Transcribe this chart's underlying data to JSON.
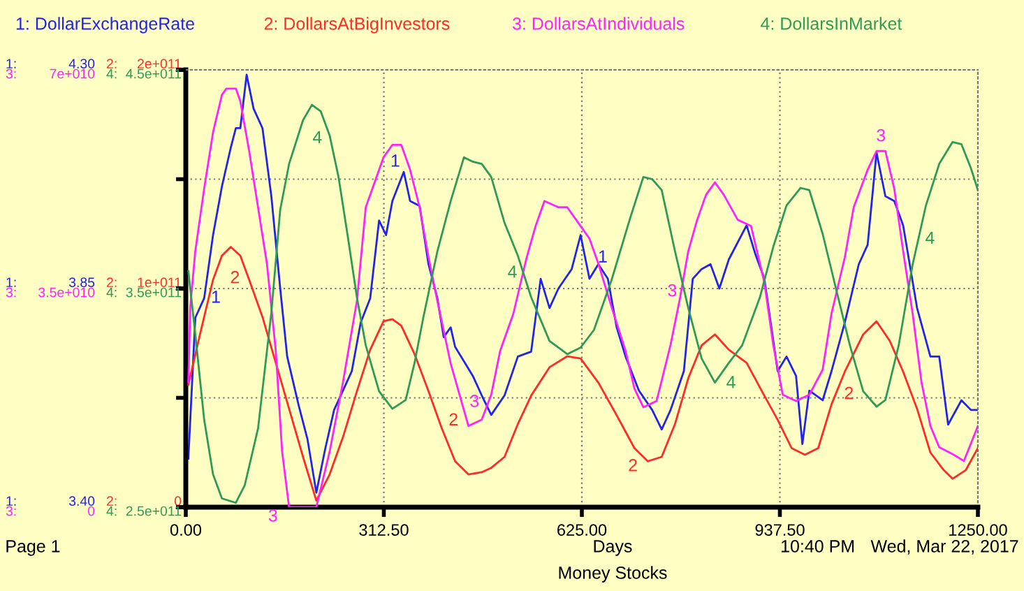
{
  "chart_data": [
    {
      "type": "line",
      "xlabel": "Days",
      "legend": "top",
      "grid": true,
      "xlim": [
        0,
        1250
      ],
      "xticks": [
        {
          "value": 0,
          "label": "0.00"
        },
        {
          "value": 312.5,
          "label": "312.50"
        },
        {
          "value": 625,
          "label": "625.00"
        },
        {
          "value": 937.5,
          "label": "937.50"
        },
        {
          "value": 1250,
          "label": "1250.00"
        }
      ],
      "ylim": [
        3.4,
        4.3
      ],
      "yticks": [
        {
          "value": 3.4,
          "label": "3.40"
        },
        {
          "value": 3.625,
          "label": null
        },
        {
          "value": 3.85,
          "label": "3.85"
        },
        {
          "value": 4.075,
          "label": null
        },
        {
          "value": 4.3,
          "label": "4.30"
        }
      ],
      "series": [
        {
          "name": "1: DollarExchangeRate",
          "color": "#2222ee",
          "x": [
            4,
            15,
            29,
            43,
            57,
            71,
            79,
            86,
            96,
            107,
            121,
            135,
            149,
            160,
            178,
            192,
            206,
            220,
            234,
            248,
            262,
            276,
            291,
            305,
            316,
            326,
            344,
            354,
            369,
            383,
            397,
            407,
            418,
            425,
            439,
            453,
            467,
            482,
            503,
            524,
            545,
            560,
            574,
            588,
            609,
            623,
            637,
            651,
            666,
            680,
            694,
            715,
            736,
            751,
            765,
            786,
            800,
            814,
            828,
            842,
            857,
            885,
            899,
            913,
            934,
            948,
            963,
            973,
            984,
            1005,
            1019,
            1040,
            1062,
            1076,
            1090,
            1104,
            1118,
            1132,
            1154,
            1175,
            1189,
            1203,
            1224,
            1239,
            1250
          ],
          "values": [
            3.5,
            3.79,
            3.83,
            3.96,
            4.06,
            4.14,
            4.18,
            4.18,
            4.29,
            4.22,
            4.18,
            4.04,
            3.85,
            3.71,
            3.61,
            3.54,
            3.43,
            3.52,
            3.6,
            3.64,
            3.68,
            3.78,
            3.83,
            3.99,
            3.96,
            4.03,
            4.09,
            4.03,
            4.02,
            3.9,
            3.83,
            3.75,
            3.77,
            3.73,
            3.7,
            3.67,
            3.63,
            3.59,
            3.63,
            3.71,
            3.72,
            3.87,
            3.81,
            3.85,
            3.89,
            3.96,
            3.87,
            3.9,
            3.87,
            3.77,
            3.71,
            3.64,
            3.6,
            3.56,
            3.6,
            3.68,
            3.87,
            3.89,
            3.9,
            3.85,
            3.91,
            3.98,
            3.92,
            3.87,
            3.68,
            3.71,
            3.67,
            3.53,
            3.64,
            3.62,
            3.68,
            3.78,
            3.9,
            3.94,
            4.13,
            4.04,
            4.03,
            3.98,
            3.81,
            3.71,
            3.71,
            3.57,
            3.62,
            3.6,
            3.6
          ]
        }
      ],
      "annotations": [
        "1:",
        "1:",
        "1:",
        {
          "text": "1",
          "x": 32,
          "y": 3.85
        },
        {
          "text": "1",
          "x": 346,
          "y": 4.09
        },
        {
          "text": "1",
          "x": 658,
          "y": 3.89
        },
        "Page 1",
        "10:40 PM",
        "Wed, Mar 22, 2017",
        "Money Stocks"
      ]
    },
    {
      "type": "line",
      "legend": "top",
      "tick_labels": "y",
      "xlim": [
        0,
        1250
      ],
      "ylim": [
        0,
        200000000000
      ],
      "yticks": [
        {
          "value": 0,
          "label": "0"
        },
        {
          "value": 100000000000,
          "label": "1e+011"
        },
        {
          "value": 200000000000,
          "label": "2e+011"
        }
      ],
      "series": [
        {
          "name": "2: DollarsAtBigInvestors",
          "color": "#ff2a2a",
          "x": [
            4,
            24,
            43,
            57,
            71,
            86,
            100,
            121,
            142,
            163,
            185,
            206,
            227,
            248,
            270,
            291,
            312,
            326,
            340,
            361,
            383,
            404,
            425,
            446,
            467,
            482,
            503,
            524,
            545,
            574,
            602,
            623,
            651,
            680,
            708,
            729,
            751,
            772,
            793,
            814,
            835,
            857,
            885,
            913,
            934,
            956,
            977,
            998,
            1019,
            1040,
            1069,
            1090,
            1111,
            1132,
            1154,
            1175,
            1196,
            1210,
            1231,
            1250
          ],
          "values": [
            56000000000,
            81000000000,
            104000000000,
            115000000000,
            119000000000,
            115000000000,
            104000000000,
            87000000000,
            66000000000,
            45000000000,
            23000000000,
            3000000000,
            15000000000,
            32000000000,
            53000000000,
            72000000000,
            85000000000,
            86000000000,
            83000000000,
            70000000000,
            53000000000,
            36000000000,
            21000000000,
            15000000000,
            16000000000,
            18000000000,
            23000000000,
            38000000000,
            51000000000,
            64000000000,
            69000000000,
            68000000000,
            57000000000,
            42000000000,
            27000000000,
            21000000000,
            23000000000,
            38000000000,
            59000000000,
            74000000000,
            79000000000,
            72000000000,
            66000000000,
            51000000000,
            40000000000,
            27000000000,
            24000000000,
            27000000000,
            47000000000,
            62000000000,
            79000000000,
            85000000000,
            76000000000,
            62000000000,
            45000000000,
            25000000000,
            17000000000,
            13000000000,
            17000000000,
            27000000000
          ]
        }
      ],
      "annotations": [
        "2:",
        "2:",
        "2:",
        {
          "text": "2",
          "x": 93,
          "y": 109000000000
        },
        {
          "text": "2",
          "x": 407,
          "y": 35000000000
        },
        {
          "text": "2",
          "x": 721,
          "y": 23000000000
        },
        {
          "text": "2",
          "x": 1031,
          "y": 56000000000
        }
      ]
    },
    {
      "type": "line",
      "legend": "top",
      "tick_labels": "y",
      "xlim": [
        0,
        1250
      ],
      "ylim": [
        0,
        70000000000
      ],
      "yticks": [
        {
          "value": 0,
          "label": "0"
        },
        {
          "value": 35000000000,
          "label": "3.5e+010"
        },
        {
          "value": 70000000000,
          "label": "7e+010"
        }
      ],
      "series": [
        {
          "name": "3: DollarsAtIndividuals",
          "color": "#ff22ff",
          "x": [
            4,
            7,
            15,
            29,
            43,
            57,
            64,
            79,
            86,
            100,
            114,
            128,
            142,
            152,
            163,
            185,
            206,
            227,
            248,
            270,
            284,
            298,
            312,
            326,
            340,
            354,
            369,
            383,
            397,
            418,
            432,
            446,
            467,
            482,
            496,
            517,
            538,
            552,
            566,
            588,
            602,
            623,
            637,
            651,
            672,
            694,
            708,
            722,
            743,
            765,
            779,
            793,
            807,
            821,
            835,
            849,
            871,
            892,
            913,
            927,
            942,
            963,
            984,
            1005,
            1019,
            1040,
            1054,
            1076,
            1090,
            1104,
            1118,
            1132,
            1147,
            1161,
            1175,
            1189,
            1210,
            1228,
            1250
          ],
          "values": [
            20000000000,
            32000000000,
            41000000000,
            51000000000,
            60000000000,
            66000000000,
            67000000000,
            67000000000,
            65000000000,
            57000000000,
            48000000000,
            39000000000,
            25000000000,
            8900000000,
            0,
            0,
            0,
            8900000000,
            20000000000,
            33000000000,
            48000000000,
            52000000000,
            56000000000,
            58000000000,
            58000000000,
            54000000000,
            48000000000,
            40000000000,
            33000000000,
            23000000000,
            18000000000,
            13000000000,
            14000000000,
            18000000000,
            25000000000,
            31000000000,
            40000000000,
            45000000000,
            49000000000,
            48000000000,
            48000000000,
            45000000000,
            43000000000,
            39000000000,
            32000000000,
            25000000000,
            19000000000,
            16000000000,
            17000000000,
            26000000000,
            33000000000,
            41000000000,
            46000000000,
            50000000000,
            52000000000,
            50000000000,
            46000000000,
            45000000000,
            36000000000,
            26000000000,
            18000000000,
            17000000000,
            18000000000,
            22000000000,
            31000000000,
            40000000000,
            48000000000,
            54000000000,
            57000000000,
            57000000000,
            51000000000,
            41000000000,
            31000000000,
            20000000000,
            13000000000,
            9600000000,
            8500000000,
            7400000000,
            13000000000
          ]
        }
      ],
      "annotations": [
        "3:",
        "3:",
        "3:",
        {
          "text": "3",
          "x": 153,
          "y": 0
        },
        {
          "text": "3",
          "x": 471,
          "y": 15200000000
        },
        {
          "text": "3",
          "x": 783,
          "y": 32900000000
        },
        {
          "text": "3",
          "x": 1097,
          "y": 57500000000
        }
      ]
    },
    {
      "type": "line",
      "legend": "top",
      "tick_labels": "y",
      "xlim": [
        0,
        1250
      ],
      "ylim": [
        250000000000,
        450000000000
      ],
      "yticks": [
        {
          "value": 250000000000,
          "label": "2.5e+011"
        },
        {
          "value": 350000000000,
          "label": "3.5e+011"
        },
        {
          "value": 450000000000,
          "label": "4.5e+011"
        }
      ],
      "series": [
        {
          "name": "4: DollarsInMarket",
          "color": "#2e9a55",
          "x": [
            4,
            15,
            29,
            43,
            57,
            79,
            93,
            114,
            135,
            149,
            163,
            185,
            199,
            213,
            227,
            241,
            255,
            270,
            284,
            305,
            326,
            347,
            361,
            375,
            397,
            418,
            439,
            453,
            467,
            482,
            503,
            524,
            545,
            574,
            602,
            623,
            644,
            672,
            701,
            722,
            736,
            751,
            772,
            793,
            814,
            835,
            857,
            878,
            906,
            927,
            948,
            970,
            984,
            1005,
            1026,
            1048,
            1069,
            1090,
            1104,
            1125,
            1147,
            1168,
            1189,
            1210,
            1224,
            1239,
            1250
          ],
          "values": [
            358000000000,
            329000000000,
            290000000000,
            265000000000,
            254000000000,
            252000000000,
            260000000000,
            286000000000,
            339000000000,
            386000000000,
            407000000000,
            427000000000,
            434000000000,
            431000000000,
            420000000000,
            401000000000,
            375000000000,
            346000000000,
            324000000000,
            303000000000,
            295000000000,
            299000000000,
            316000000000,
            337000000000,
            367000000000,
            390000000000,
            410000000000,
            408000000000,
            407000000000,
            401000000000,
            380000000000,
            365000000000,
            346000000000,
            326000000000,
            320000000000,
            323000000000,
            331000000000,
            354000000000,
            382000000000,
            401000000000,
            400000000000,
            395000000000,
            367000000000,
            341000000000,
            318000000000,
            307000000000,
            316000000000,
            324000000000,
            346000000000,
            369000000000,
            388000000000,
            396000000000,
            395000000000,
            375000000000,
            350000000000,
            324000000000,
            303000000000,
            296000000000,
            299000000000,
            324000000000,
            361000000000,
            388000000000,
            407000000000,
            417000000000,
            416000000000,
            405000000000,
            395000000000
          ]
        }
      ],
      "annotations": [
        "4:",
        "4:",
        "4:",
        {
          "text": "4",
          "x": 223,
          "y": 423000000000
        },
        {
          "text": "4",
          "x": 533,
          "y": 357000000000
        },
        {
          "text": "4",
          "x": 845,
          "y": 311000000000
        },
        {
          "text": "4",
          "x": 1159,
          "y": 377000000000
        }
      ]
    }
  ]
}
